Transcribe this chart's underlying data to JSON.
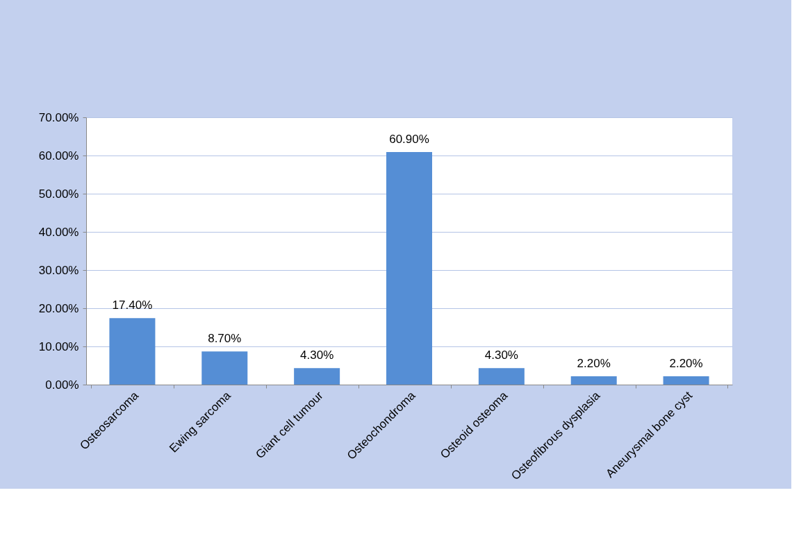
{
  "chart_data": {
    "type": "bar",
    "categories": [
      "Osteosarcoma",
      "Ewing sarcoma",
      "Giant cell tumour",
      "Osteochondroma",
      "Osteoid osteoma",
      "Osteofibrous dysplasia",
      "Aneurysmal bone cyst"
    ],
    "values": [
      17.4,
      8.7,
      4.3,
      60.9,
      4.3,
      2.2,
      2.2
    ],
    "color": "#558ed5",
    "value_labels": [
      "17.40%",
      "8.70%",
      "4.30%",
      "60.90%",
      "4.30%",
      "2.20%",
      "2.20%"
    ],
    "ylim": [
      0,
      70
    ],
    "yticks": [
      {
        "value": 0,
        "label": "0.00%"
      },
      {
        "value": 10,
        "label": "10.00%"
      },
      {
        "value": 20,
        "label": "20.00%"
      },
      {
        "value": 30,
        "label": "30.00%"
      },
      {
        "value": 40,
        "label": "40.00%"
      },
      {
        "value": 50,
        "label": "50.00%"
      },
      {
        "value": 60,
        "label": "60.00%"
      },
      {
        "value": 70,
        "label": "70.00%"
      }
    ],
    "grid": "y"
  }
}
